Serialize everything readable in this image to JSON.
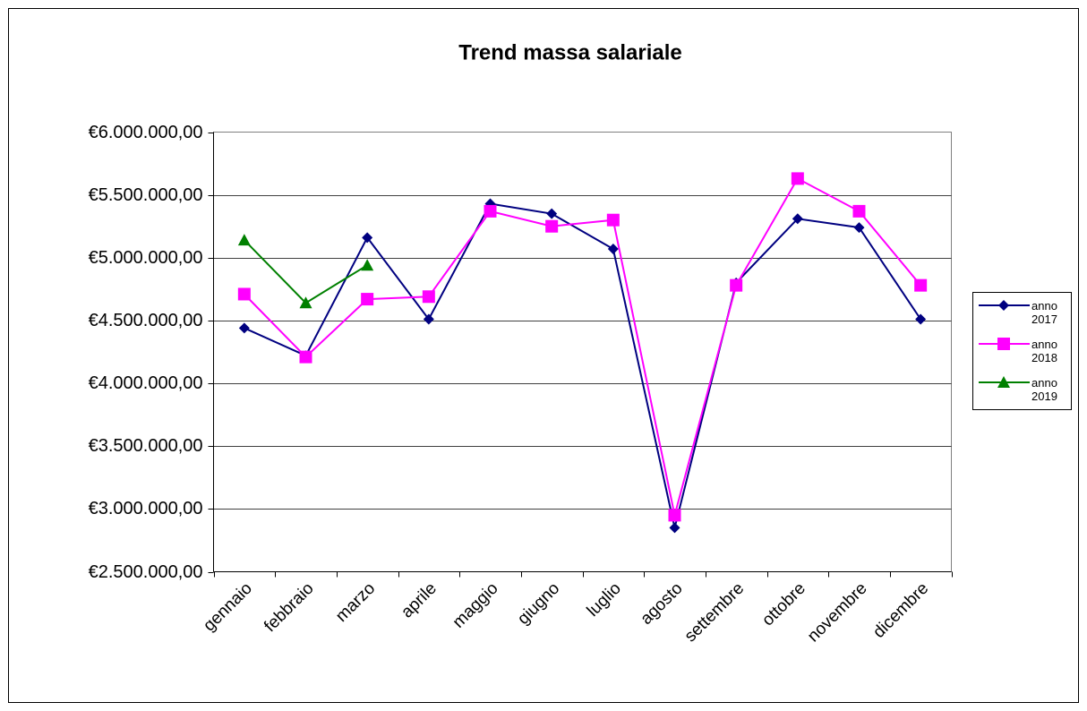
{
  "chart_data": {
    "type": "line",
    "title": "Trend massa salariale",
    "categories": [
      "gennaio",
      "febbraio",
      "marzo",
      "aprile",
      "maggio",
      "giugno",
      "luglio",
      "agosto",
      "settembre",
      "ottobre",
      "novembre",
      "dicembre"
    ],
    "series": [
      {
        "name": "anno 2017",
        "color": "#000080",
        "marker": "diamond",
        "values": [
          4440000,
          4220000,
          5160000,
          4510000,
          5430000,
          5350000,
          5070000,
          2850000,
          4800000,
          5310000,
          5240000,
          4510000
        ]
      },
      {
        "name": "anno 2018",
        "color": "#ff00ff",
        "marker": "square",
        "values": [
          4710000,
          4210000,
          4670000,
          4690000,
          5370000,
          5250000,
          5300000,
          2950000,
          4780000,
          5630000,
          5370000,
          4780000
        ]
      },
      {
        "name": "anno 2019",
        "color": "#008000",
        "marker": "triangle",
        "values": [
          5140000,
          4640000,
          4940000,
          null,
          null,
          null,
          null,
          null,
          null,
          null,
          null,
          null
        ]
      }
    ],
    "ylim": [
      2500000,
      6000000
    ],
    "yticks": [
      {
        "value": 2500000,
        "label": "€2.500.000,00"
      },
      {
        "value": 3000000,
        "label": "€3.000.000,00"
      },
      {
        "value": 3500000,
        "label": "€3.500.000,00"
      },
      {
        "value": 4000000,
        "label": "€4.000.000,00"
      },
      {
        "value": 4500000,
        "label": "€4.500.000,00"
      },
      {
        "value": 5000000,
        "label": "€5.000.000,00"
      },
      {
        "value": 5500000,
        "label": "€5.500.000,00"
      },
      {
        "value": 6000000,
        "label": "€6.000.000,00"
      }
    ],
    "grid": true,
    "legend": "right"
  }
}
